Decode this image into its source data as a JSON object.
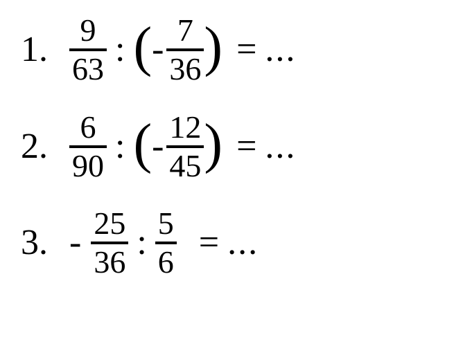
{
  "problems": [
    {
      "number": "1.",
      "leading_neg": "",
      "frac1": {
        "num": "9",
        "den": "63"
      },
      "colon": ":",
      "has_paren": true,
      "neg": "-",
      "frac2": {
        "num": "7",
        "den": "36"
      },
      "equals": "=",
      "dots": "...",
      "extra_space": false
    },
    {
      "number": "2.",
      "leading_neg": "",
      "frac1": {
        "num": "6",
        "den": "90"
      },
      "colon": ":",
      "has_paren": true,
      "neg": "-",
      "frac2": {
        "num": "12",
        "den": "45"
      },
      "equals": "=",
      "dots": "...",
      "extra_space": false
    },
    {
      "number": "3.",
      "leading_neg": "-",
      "frac1": {
        "num": "25",
        "den": "36"
      },
      "colon": ":",
      "has_paren": false,
      "neg": "",
      "frac2": {
        "num": "5",
        "den": "6"
      },
      "equals": "=",
      "dots": "...",
      "extra_space": true
    }
  ],
  "style": {
    "background_color": "#ffffff",
    "text_color": "#000000",
    "font_family": "Times New Roman, serif",
    "main_fontsize": 52,
    "fraction_fontsize": 46,
    "paren_fontsize": 80,
    "border_width": 4
  }
}
